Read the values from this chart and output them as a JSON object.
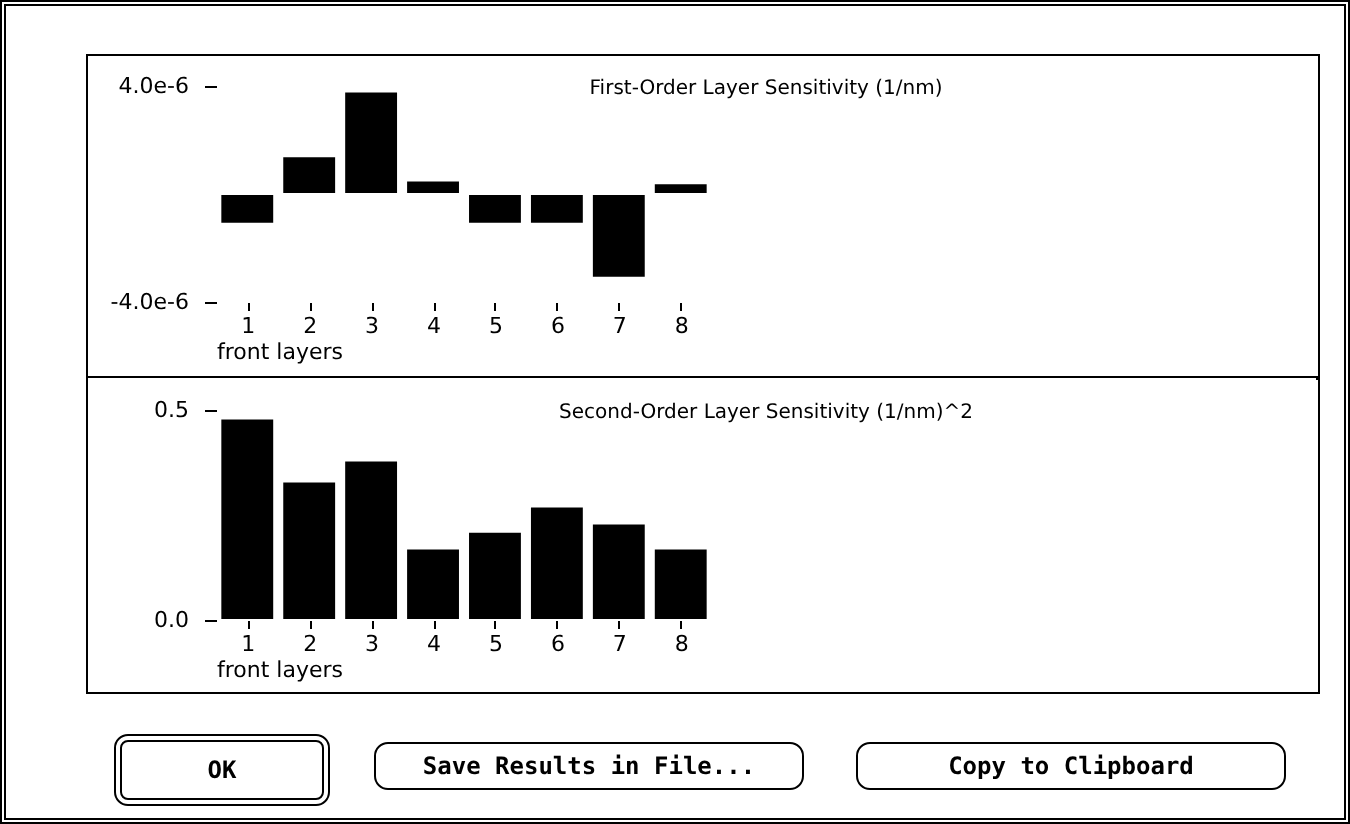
{
  "chart_data": [
    {
      "type": "bar",
      "title": "First-Order Layer Sensitivity (1/nm)",
      "xlabel": "front layers",
      "categories": [
        "1",
        "2",
        "3",
        "4",
        "5",
        "6",
        "7",
        "8"
      ],
      "color": "#000000",
      "values": [
        -1.1e-06,
        1.4e-06,
        3.8e-06,
        5e-07,
        -1.1e-06,
        -1.1e-06,
        -3.1e-06,
        4e-07
      ],
      "ylim": [
        -4e-06,
        4e-06
      ],
      "yticks": [
        {
          "value": -4e-06,
          "label": "-4.0e-6"
        },
        {
          "value": 4e-06,
          "label": "4.0e-6"
        }
      ],
      "grid": false
    },
    {
      "type": "bar",
      "title": "Second-Order Layer Sensitivity (1/nm)^2",
      "xlabel": "front layers",
      "categories": [
        "1",
        "2",
        "3",
        "4",
        "5",
        "6",
        "7",
        "8"
      ],
      "color": "#000000",
      "values": [
        0.48,
        0.33,
        0.38,
        0.17,
        0.21,
        0.27,
        0.23,
        0.17
      ],
      "ylim": [
        0,
        0.5
      ],
      "yticks": [
        {
          "value": 0,
          "label": "0.0"
        },
        0.5
      ],
      "grid": false
    },
    {
      "type": "other",
      "annotations": [
        "OK",
        "Save Results in File...",
        "Copy to Clipboard"
      ]
    }
  ]
}
